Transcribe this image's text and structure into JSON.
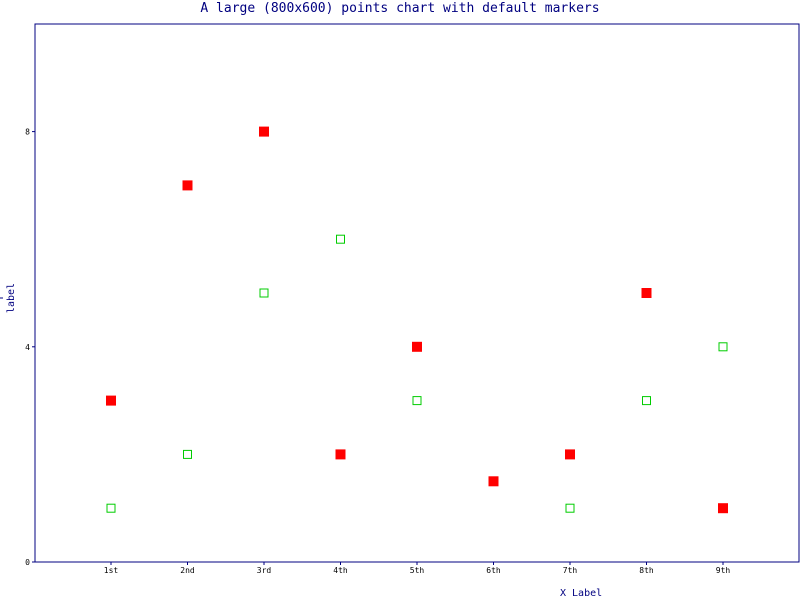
{
  "chart_data": {
    "type": "scatter",
    "title": "A large (800x600) points chart with default markers",
    "xlabel": "X Label",
    "ylabel": "Y label",
    "categories": [
      "1st",
      "2nd",
      "3rd",
      "4th",
      "5th",
      "6th",
      "7th",
      "8th",
      "9th"
    ],
    "ylim": [
      0,
      10
    ],
    "yticks": [
      0,
      4,
      8
    ],
    "grid": false,
    "series": [
      {
        "color": "#ff0000",
        "marker": "filled-square",
        "values": [
          3,
          7,
          8,
          2,
          4,
          1.5,
          2,
          5,
          1
        ]
      },
      {
        "color": "#00cc00",
        "marker": "hollow-square",
        "values": [
          1,
          2,
          5,
          6,
          3,
          1.5,
          1,
          3,
          4
        ]
      }
    ]
  },
  "colors": {
    "axis": "#000080",
    "text": "#000080",
    "background": "#ffffff"
  }
}
